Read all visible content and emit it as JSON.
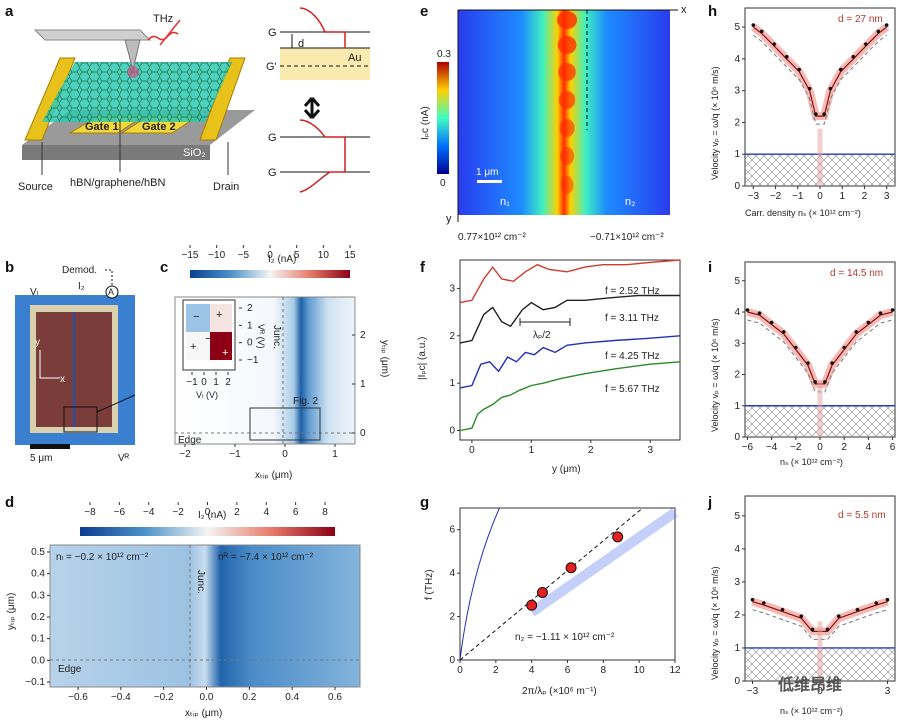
{
  "panels": {
    "a": {
      "label": "a",
      "thz": "THz",
      "gate1": "Gate 1",
      "gate2": "Gate 2",
      "sio2": "SiO₂",
      "source": "Source",
      "hbn": "hBN/graphene/hBN",
      "drain": "Drain",
      "G": "G",
      "d": "d",
      "Gp": "G'",
      "Au": "Au",
      "G2": "G",
      "G3": "G"
    },
    "b": {
      "label": "b",
      "demod": "Demod.",
      "VL": "Vₗ",
      "I2": "I₂",
      "A": "A",
      "y": "y",
      "x": "x",
      "scale": "5 μm",
      "VR": "Vᴿ"
    },
    "c": {
      "label": "c",
      "cb_title": "I₂ (nA)",
      "cb_ticks": [
        "−15",
        "−10",
        "−5",
        "0",
        "5",
        "10",
        "15"
      ],
      "inset_yticks": [
        "2",
        "1",
        "0",
        "−1"
      ],
      "inset_xticks": [
        "−1",
        "0",
        "1",
        "2"
      ],
      "inset_xlabel": "Vₗ (V)",
      "inset_ylabel": "Vᴿ (V)",
      "signs": [
        "−",
        "+",
        "+",
        "−",
        "+"
      ],
      "junc": "Junc.",
      "fig2": "Fig. 2",
      "edge": "Edge",
      "xticks": [
        "−2",
        "−1",
        "0",
        "1"
      ],
      "yticks": [
        "2",
        "1",
        "0"
      ],
      "xlabel": "xₜᵢₚ (μm)",
      "ylabel": "yₜᵢₚ (μm)"
    },
    "d": {
      "label": "d",
      "cb_title": "I₂ (nA)",
      "cb_ticks": [
        "−8",
        "−6",
        "−4",
        "−2",
        "0",
        "2",
        "4",
        "6",
        "8"
      ],
      "nL": "nₗ = −0.2 × 10¹² cm⁻²",
      "nR": "nᴿ = −7.4 × 10¹² cm⁻²",
      "junc": "Junc.",
      "edge": "Edge",
      "yticks": [
        "0.5",
        "0.4",
        "0.3",
        "0.2",
        "0.1",
        "0.0",
        "−0.1"
      ],
      "xticks": [
        "−0.6",
        "−0.4",
        "−0.2",
        "0.0",
        "0.2",
        "0.4",
        "0.6"
      ],
      "xlabel": "xₜᵢₚ (μm)",
      "ylabel": "yₜᵢₚ (μm)"
    },
    "e": {
      "label": "e",
      "x": "x",
      "y": "y",
      "scale": "1 μm",
      "n1": "n₁",
      "n2": "n₂",
      "cb_max": "0.3",
      "cb_min": "0",
      "ylabel": "Iₚᴄ (nA)",
      "left_density": "0.77×10¹² cm⁻²",
      "right_density": "−0.71×10¹² cm⁻²"
    },
    "f": {
      "label": "f",
      "ylabel": "|Iₚᴄ| (a.u.)",
      "xlabel": "y (μm)",
      "yticks": [
        "3",
        "2",
        "1",
        "0"
      ],
      "xticks": [
        "0",
        "1",
        "2",
        "3"
      ],
      "lambda": "λₚ/2",
      "freqs": [
        {
          "text": "f = 2.52 THz",
          "color": "#d03a2c"
        },
        {
          "text": "f = 3.11 THz",
          "color": "#222222"
        },
        {
          "text": "f = 4.25 THz",
          "color": "#2430b8"
        },
        {
          "text": "f = 5.67 THz",
          "color": "#2a8a2a"
        }
      ]
    },
    "g": {
      "label": "g",
      "ylabel": "f (THz)",
      "xlabel": "2π/λₚ (×10⁶ m⁻¹)",
      "yticks": [
        "6",
        "4",
        "2",
        "0"
      ],
      "xticks": [
        "0",
        "2",
        "4",
        "6",
        "8",
        "10",
        "12"
      ],
      "n2": "n₂ = −1.11 × 10¹² cm⁻²"
    },
    "h": {
      "label": "h",
      "d": "d = 27 nm",
      "yticks": [
        "5",
        "4",
        "3",
        "2",
        "1",
        "0"
      ],
      "xticks": [
        "−3",
        "−2",
        "−1",
        "0",
        "1",
        "2",
        "3"
      ],
      "xlabel": "Carr. density nₛ (× 10¹² cm⁻²)",
      "ylabel": "Velocity vₚ = ω/q (× 10⁶ m/s)"
    },
    "i": {
      "label": "i",
      "d": "d = 14.5 nm",
      "yticks": [
        "5",
        "4",
        "3",
        "2",
        "1",
        "0"
      ],
      "xticks": [
        "−6",
        "−4",
        "−2",
        "0",
        "2",
        "4",
        "6"
      ],
      "xlabel": "nₛ (× 10¹² cm⁻²)",
      "ylabel": "Velocity vₚ = ω/q (× 10⁶ m/s)"
    },
    "j": {
      "label": "j",
      "d": "d = 5.5 nm",
      "yticks": [
        "5",
        "4",
        "3",
        "2",
        "1",
        "0"
      ],
      "xticks": [
        "−3",
        "0",
        "3"
      ],
      "xlabel": "nₛ (× 10¹² cm⁻²)",
      "ylabel": "Velocity vₚ = ω/q (× 10⁶ m/s)"
    }
  },
  "watermark": "低维昂维",
  "colors": {
    "red": "#d03a2c",
    "blue": "#2430b8",
    "green": "#2a8a2a"
  },
  "chart_data": [
    {
      "type": "line",
      "panel": "f",
      "title": "",
      "xlabel": "y (μm)",
      "ylabel": "|IPC| (a.u.)",
      "xlim": [
        -0.2,
        3.5
      ],
      "ylim": [
        -0.2,
        3.6
      ],
      "series": [
        {
          "name": "f = 2.52 THz",
          "offset": 2.7,
          "x": [
            -0.2,
            0,
            0.2,
            0.35,
            0.5,
            0.7,
            0.9,
            1.1,
            1.3,
            1.6,
            1.9,
            2.2,
            2.6,
            3.0,
            3.5
          ],
          "values": [
            2.7,
            2.75,
            3.2,
            3.45,
            3.2,
            3.15,
            3.35,
            3.5,
            3.4,
            3.35,
            3.45,
            3.5,
            3.5,
            3.55,
            3.6
          ]
        },
        {
          "name": "f = 3.11 THz",
          "offset": 1.85,
          "x": [
            -0.2,
            0,
            0.2,
            0.35,
            0.5,
            0.65,
            0.85,
            1.0,
            1.2,
            1.4,
            1.6,
            1.9,
            2.3,
            2.8,
            3.5
          ],
          "values": [
            1.85,
            1.9,
            2.45,
            2.6,
            2.3,
            2.2,
            2.55,
            2.7,
            2.55,
            2.6,
            2.75,
            2.75,
            2.8,
            2.85,
            2.85
          ]
        },
        {
          "name": "f = 4.25 THz",
          "offset": 0.9,
          "x": [
            -0.2,
            0,
            0.15,
            0.3,
            0.45,
            0.6,
            0.75,
            0.9,
            1.05,
            1.2,
            1.4,
            1.6,
            1.9,
            2.4,
            3.0,
            3.5
          ],
          "values": [
            0.9,
            0.95,
            1.4,
            1.45,
            1.25,
            1.55,
            1.45,
            1.65,
            1.6,
            1.75,
            1.65,
            1.8,
            1.85,
            1.9,
            1.95,
            2.0
          ]
        },
        {
          "name": "f = 5.67 THz",
          "offset": 0.0,
          "x": [
            -0.2,
            0,
            0.1,
            0.2,
            0.35,
            0.5,
            0.65,
            0.8,
            1.0,
            1.2,
            1.5,
            1.9,
            2.4,
            3.0,
            3.5
          ],
          "values": [
            0.0,
            0.05,
            0.35,
            0.45,
            0.55,
            0.7,
            0.75,
            0.85,
            0.95,
            1.0,
            1.1,
            1.2,
            1.3,
            1.4,
            1.45
          ]
        }
      ]
    },
    {
      "type": "scatter",
      "panel": "g",
      "xlabel": "2π/λp (×10⁶ m⁻¹)",
      "ylabel": "f (THz)",
      "xlim": [
        0,
        12
      ],
      "ylim": [
        0,
        7
      ],
      "series": [
        {
          "name": "data",
          "x": [
            4.0,
            4.6,
            6.2,
            8.8
          ],
          "values": [
            2.52,
            3.11,
            4.25,
            5.67
          ]
        }
      ]
    },
    {
      "type": "scatter",
      "panel": "h",
      "xlim": [
        -3.6,
        3.6
      ],
      "ylim": [
        0,
        5.6
      ],
      "d_nm": 27,
      "series": [
        {
          "name": "velocity",
          "x": [
            -3.2,
            -2.8,
            -2.2,
            -1.6,
            -1.0,
            -0.5,
            -0.2,
            0.2,
            0.5,
            1.0,
            1.6,
            2.2,
            2.8,
            3.2
          ],
          "values": [
            5.0,
            4.8,
            4.4,
            4.0,
            3.6,
            3.0,
            2.2,
            2.2,
            3.0,
            3.6,
            4.0,
            4.4,
            4.8,
            5.0
          ]
        }
      ]
    },
    {
      "type": "scatter",
      "panel": "i",
      "xlim": [
        -6.2,
        6.2
      ],
      "ylim": [
        0,
        5.6
      ],
      "d_nm": 14.5,
      "series": [
        {
          "name": "velocity",
          "x": [
            -6,
            -5,
            -4,
            -3,
            -2,
            -1,
            -0.4,
            0.4,
            1,
            2,
            3,
            4,
            5,
            6
          ],
          "values": [
            4.0,
            3.9,
            3.6,
            3.3,
            2.8,
            2.3,
            1.7,
            1.7,
            2.3,
            2.8,
            3.3,
            3.6,
            3.9,
            4.0
          ]
        }
      ]
    },
    {
      "type": "scatter",
      "panel": "j",
      "xlim": [
        -4,
        4
      ],
      "ylim": [
        0,
        5.6
      ],
      "d_nm": 5.5,
      "series": [
        {
          "name": "velocity",
          "x": [
            -3.6,
            -3,
            -2,
            -1,
            -0.4,
            0.4,
            1,
            2,
            3,
            3.6
          ],
          "values": [
            2.4,
            2.3,
            2.1,
            1.9,
            1.5,
            1.5,
            1.9,
            2.1,
            2.3,
            2.4
          ]
        }
      ]
    }
  ]
}
